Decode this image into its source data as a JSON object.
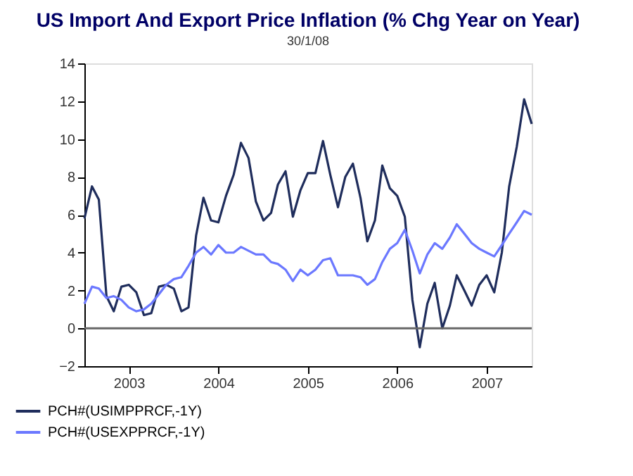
{
  "chart_data": {
    "type": "line",
    "title": "US Import And Export Price Inflation (% Chg Year on Year)",
    "subtitle": "30/1/08",
    "x": [
      "2003-01",
      "2003-02",
      "2003-03",
      "2003-04",
      "2003-05",
      "2003-06",
      "2003-07",
      "2003-08",
      "2003-09",
      "2003-10",
      "2003-11",
      "2003-12",
      "2004-01",
      "2004-02",
      "2004-03",
      "2004-04",
      "2004-05",
      "2004-06",
      "2004-07",
      "2004-08",
      "2004-09",
      "2004-10",
      "2004-11",
      "2004-12",
      "2005-01",
      "2005-02",
      "2005-03",
      "2005-04",
      "2005-05",
      "2005-06",
      "2005-07",
      "2005-08",
      "2005-09",
      "2005-10",
      "2005-11",
      "2005-12",
      "2006-01",
      "2006-02",
      "2006-03",
      "2006-04",
      "2006-05",
      "2006-06",
      "2006-07",
      "2006-08",
      "2006-09",
      "2006-10",
      "2006-11",
      "2006-12",
      "2007-01",
      "2007-02",
      "2007-03",
      "2007-04",
      "2007-05",
      "2007-06",
      "2007-07",
      "2007-08",
      "2007-09",
      "2007-10",
      "2007-11",
      "2007-12",
      "2008-01"
    ],
    "series": [
      {
        "name": "PCH#(USIMPPRCF,-1Y)",
        "color": "#1f2d5c",
        "values": [
          5.8,
          7.5,
          6.8,
          1.7,
          0.9,
          2.2,
          2.3,
          1.9,
          0.7,
          0.8,
          2.2,
          2.3,
          2.1,
          0.9,
          1.1,
          4.9,
          6.9,
          5.7,
          5.6,
          7.0,
          8.1,
          9.8,
          9.0,
          6.7,
          5.7,
          6.1,
          7.6,
          8.3,
          5.9,
          7.3,
          8.2,
          8.2,
          9.9,
          8.1,
          6.4,
          8.0,
          8.7,
          6.9,
          4.6,
          5.7,
          8.6,
          7.4,
          7.0,
          5.9,
          1.5,
          -1.0,
          1.3,
          2.4,
          0.0,
          1.2,
          2.8,
          2.0,
          1.2,
          2.3,
          2.8,
          1.9,
          4.0,
          7.5,
          9.6,
          12.1,
          10.8
        ]
      },
      {
        "name": "PCH#(USEXPPRCF,-1Y)",
        "color": "#6b78ff",
        "values": [
          1.3,
          2.2,
          2.1,
          1.6,
          1.7,
          1.5,
          1.1,
          0.9,
          1.0,
          1.3,
          1.8,
          2.3,
          2.6,
          2.7,
          3.3,
          4.0,
          4.3,
          3.9,
          4.4,
          4.0,
          4.0,
          4.3,
          4.1,
          3.9,
          3.9,
          3.5,
          3.4,
          3.1,
          2.5,
          3.1,
          2.8,
          3.1,
          3.6,
          3.7,
          2.8,
          2.8,
          2.8,
          2.7,
          2.3,
          2.6,
          3.5,
          4.2,
          4.5,
          5.2,
          4.1,
          2.9,
          3.9,
          4.5,
          4.2,
          4.8,
          5.5,
          5.0,
          4.5,
          4.2,
          4.0,
          3.8,
          4.4,
          5.0,
          5.6,
          6.2,
          6.0
        ]
      }
    ],
    "xlim": [
      "2003-01",
      "2008-01"
    ],
    "xticks": [
      {
        "value": "2003-07",
        "label": "2003"
      },
      {
        "value": "2004-07",
        "label": "2004"
      },
      {
        "value": "2005-07",
        "label": "2005"
      },
      {
        "value": "2006-07",
        "label": "2006"
      },
      {
        "value": "2007-07",
        "label": "2007"
      }
    ],
    "ylim": [
      -2,
      14
    ],
    "yticks": [
      -2,
      0,
      2,
      4,
      6,
      8,
      10,
      12,
      14
    ],
    "ref_lines": [
      {
        "axis": "y",
        "value": 0,
        "color": "#666666"
      }
    ],
    "grid": false,
    "legend": "bottom left",
    "marker": "none",
    "line_style": "solid"
  }
}
